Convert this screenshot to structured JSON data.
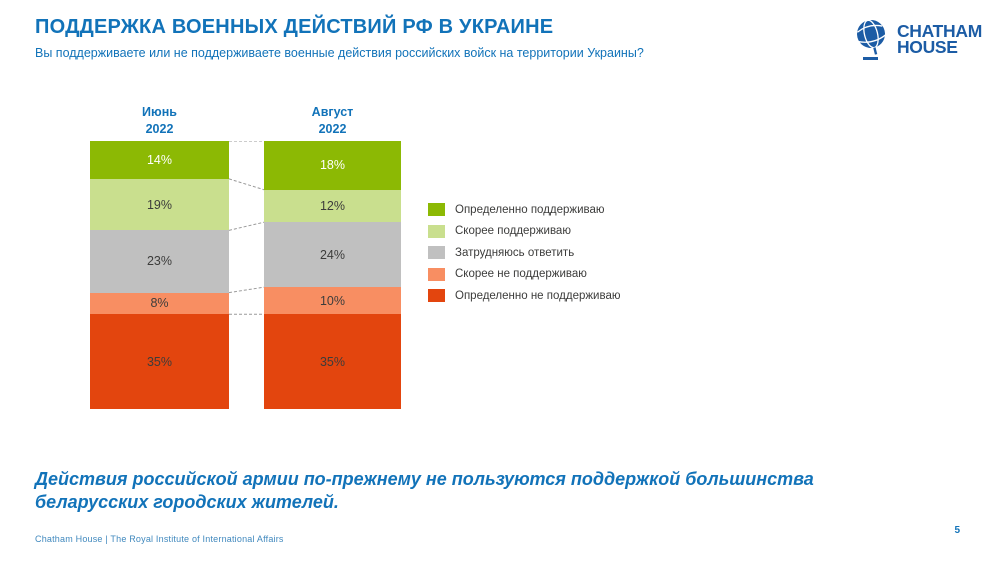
{
  "header": {
    "title": "ПОДДЕРЖКА ВОЕННЫХ ДЕЙСТВИЙ РФ В УКРАИНЕ",
    "subtitle": "Вы поддерживаете или не поддерживаете военные действия российских войск на территории Украины?"
  },
  "logo": {
    "line1": "CHATHAM",
    "line2": "HOUSE",
    "icon": "globe-icon",
    "color": "#1C5CA5"
  },
  "chart_data": {
    "type": "bar",
    "stacked": true,
    "orientation": "vertical",
    "legend_position": "right",
    "value_suffix": "%",
    "total_scale": 99,
    "categories": [
      {
        "line1": "Июнь",
        "line2": "2022"
      },
      {
        "line1": "Август",
        "line2": "2022"
      }
    ],
    "series": [
      {
        "name": "Определенно поддерживаю",
        "color": "#8CB904",
        "label_color": "#FFFFFF",
        "values": [
          14,
          18
        ]
      },
      {
        "name": "Скорее поддерживаю",
        "color": "#C9DF8E",
        "label_color": "#3C3C3B",
        "values": [
          19,
          12
        ]
      },
      {
        "name": "Затрудняюсь ответить",
        "color": "#C0C0C0",
        "label_color": "#3C3C3B",
        "values": [
          23,
          24
        ]
      },
      {
        "name": "Скорее не поддерживаю",
        "color": "#F88E62",
        "label_color": "#3C3C3B",
        "values": [
          8,
          10
        ]
      },
      {
        "name": "Определенно не поддерживаю",
        "color": "#E3450E",
        "label_color": "#3C3C3B",
        "values": [
          35,
          35
        ]
      }
    ],
    "connector_line_color": "#9a9a9a"
  },
  "takeaway": "Действия российской армии по-прежнему не пользуются поддержкой большинства беларусских городских жителей.",
  "footer": {
    "left": "Chatham House  |  The Royal Institute of International Affairs",
    "page_number": "5"
  }
}
